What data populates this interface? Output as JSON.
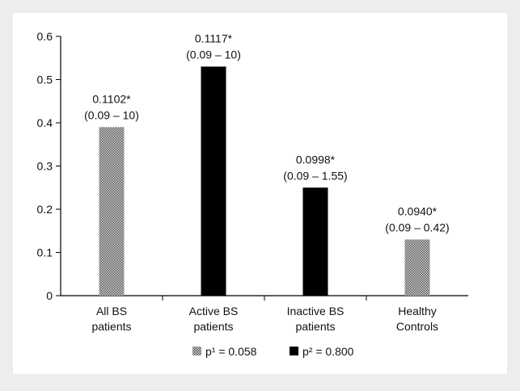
{
  "chart_data": {
    "type": "bar",
    "ylim": [
      0,
      0.6
    ],
    "yticks": [
      "0",
      "0.1",
      "0.2",
      "0.3",
      "0.4",
      "0.5",
      "0.6"
    ],
    "categories": [
      [
        "All BS",
        "patients"
      ],
      [
        "Active BS",
        "patients"
      ],
      [
        "Inactive BS",
        "patients"
      ],
      [
        "Healthy",
        "Controls"
      ]
    ],
    "values": [
      0.39,
      0.53,
      0.25,
      0.13
    ],
    "patterns": [
      "dotted",
      "solid",
      "solid",
      "dotted"
    ],
    "bar_labels": [
      [
        "0.1102*",
        "(0.09 – 10)"
      ],
      [
        "0.1117*",
        "(0.09 – 10)"
      ],
      [
        "0.0998*",
        "(0.09 – 1.55)"
      ],
      [
        "0.0940*",
        "(0.09 – 0.42)"
      ]
    ],
    "legend": [
      {
        "pattern": "dotted",
        "label": "p¹ = 0.058"
      },
      {
        "pattern": "solid",
        "label": "p² = 0.800"
      }
    ],
    "colors": {
      "background": "#ededed",
      "plot_area": "#ffffff",
      "solid_bar": "#000000",
      "dotted_bar_dark": "#555555",
      "dotted_bar_light": "#d8d8d8"
    }
  }
}
